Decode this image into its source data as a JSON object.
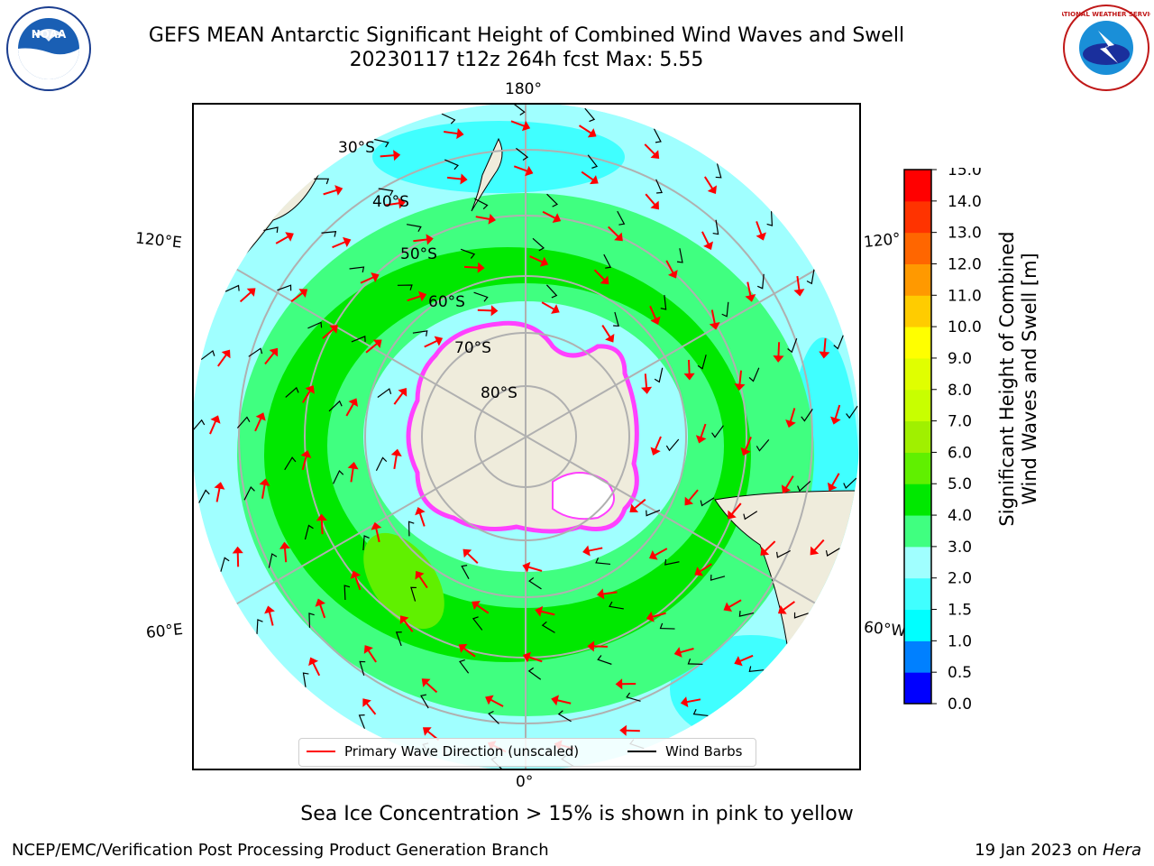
{
  "title": {
    "line1": "GEFS MEAN Antarctic Significant Height of Combined Wind Waves and Swell",
    "line2": "20230117 t12z 264h fcst   Max: 5.55"
  },
  "longitude_labels": {
    "top": "180°",
    "bottom": "0°",
    "upper_left": "120°E",
    "lower_left": "60°E",
    "upper_right": "120°",
    "lower_right": "60°W"
  },
  "latitude_labels": [
    "30°S",
    "40°S",
    "50°S",
    "60°S",
    "70°S",
    "80°S"
  ],
  "colorbar": {
    "title_line1": "Significant Height of Combined",
    "title_line2": "Wind Waves and Swell [m]",
    "ticks": [
      "0.0",
      "0.5",
      "1.0",
      "1.5",
      "2.0",
      "3.0",
      "4.0",
      "5.0",
      "6.0",
      "7.0",
      "8.0",
      "9.0",
      "10.0",
      "11.0",
      "12.0",
      "13.0",
      "14.0",
      "15.0"
    ],
    "colors": [
      "#0000ff",
      "#0080ff",
      "#00ffff",
      "#40ffff",
      "#a0ffff",
      "#40ff80",
      "#00e800",
      "#60f000",
      "#a0f000",
      "#c8ff00",
      "#e0ff00",
      "#ffff00",
      "#ffcc00",
      "#ff9900",
      "#ff6600",
      "#ff3300",
      "#ff0000"
    ]
  },
  "legend": {
    "wave_direction": "Primary Wave Direction (unscaled)",
    "wind_barbs": "Wind Barbs",
    "wave_color": "#ff0000",
    "barb_color": "#000000"
  },
  "map_colors": {
    "land": "#efecdc",
    "ice_edge": "#ff40ff",
    "ocean_low": "#a0ffff",
    "ocean_mid": "#40ff80",
    "ocean_high": "#00e800",
    "grid": "#b0b0b0"
  },
  "note": "Sea Ice Concentration > 15% is shown in pink to yellow",
  "footer": {
    "left": "NCEP/EMC/Verification Post Processing Product Generation Branch",
    "right_date": "19 Jan 2023 on ",
    "right_host": "Hera"
  },
  "logos": {
    "noaa": "NOAA",
    "nws": "NATIONAL WEATHER SERVICE"
  }
}
